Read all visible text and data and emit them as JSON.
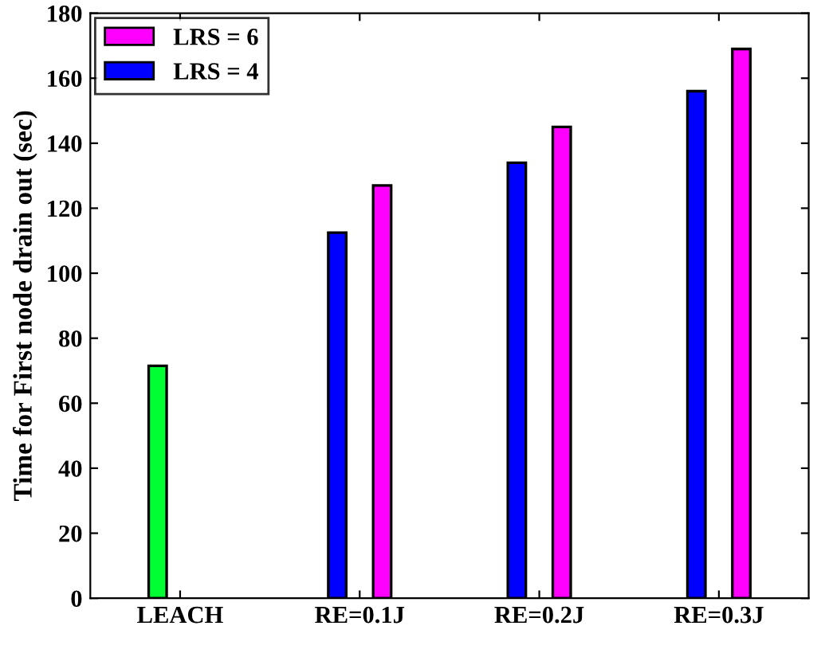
{
  "chart_data": {
    "type": "bar",
    "ylabel": "Time for First node drain out (sec)",
    "categories": [
      "LEACH",
      "RE=0.1J",
      "RE=0.2J",
      "RE=0.3J"
    ],
    "series": [
      {
        "name": "LRS = 4",
        "color": "#0000ff",
        "colors": [
          "#00ff33",
          "#0000ff",
          "#0000ff",
          "#0000ff"
        ],
        "values": [
          71.5,
          112.5,
          134,
          156
        ]
      },
      {
        "name": "LRS = 6",
        "color": "#ff00ff",
        "values": [
          null,
          127,
          145,
          169
        ]
      }
    ],
    "ylim": [
      0,
      180
    ],
    "yticks": [
      0,
      20,
      40,
      60,
      80,
      100,
      120,
      140,
      160,
      180
    ],
    "grid": false,
    "legend": "top left"
  }
}
